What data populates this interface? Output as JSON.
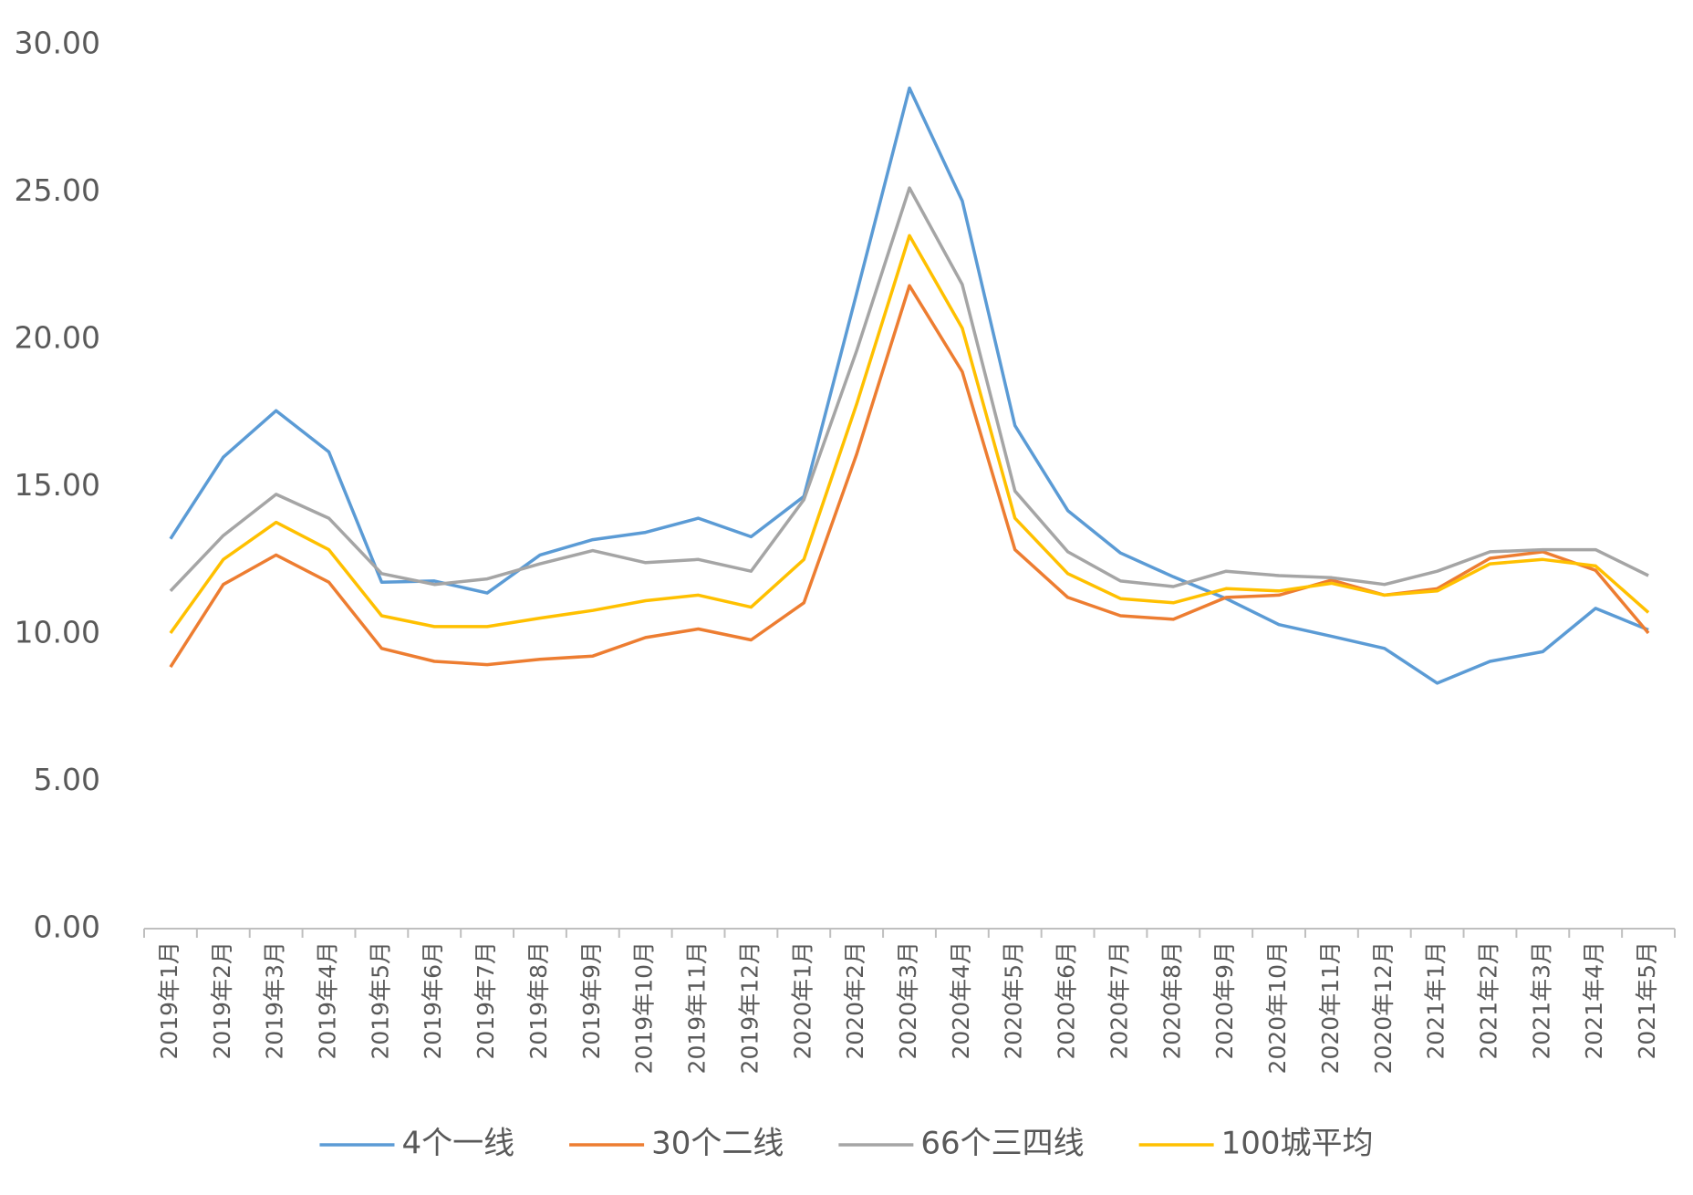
{
  "chart_data": {
    "type": "line",
    "categories": [
      "2019年1月",
      "2019年2月",
      "2019年3月",
      "2019年4月",
      "2019年5月",
      "2019年6月",
      "2019年7月",
      "2019年8月",
      "2019年9月",
      "2019年10月",
      "2019年11月",
      "2019年12月",
      "2020年1月",
      "2020年2月",
      "2020年3月",
      "2020年4月",
      "2020年5月",
      "2020年6月",
      "2020年7月",
      "2020年8月",
      "2020年9月",
      "2020年10月",
      "2020年11月",
      "2020年12月",
      "2021年1月",
      "2021年2月",
      "2021年3月",
      "2021年4月",
      "2021年5月"
    ],
    "series": [
      {
        "name": "4个一线",
        "color": "#5b9bd5",
        "values": [
          13.23,
          16.0,
          17.58,
          16.18,
          11.76,
          11.8,
          11.39,
          12.68,
          13.2,
          13.45,
          13.93,
          13.3,
          14.67,
          21.56,
          28.53,
          24.7,
          17.07,
          14.19,
          12.75,
          11.94,
          11.2,
          10.32,
          9.92,
          9.51,
          8.33,
          9.07,
          9.4,
          10.87,
          10.14
        ]
      },
      {
        "name": "30个二线",
        "color": "#ed7d31",
        "values": [
          8.88,
          11.68,
          12.68,
          11.76,
          9.51,
          9.07,
          8.96,
          9.14,
          9.25,
          9.88,
          10.17,
          9.8,
          11.06,
          16.1,
          21.82,
          18.9,
          12.86,
          11.24,
          10.62,
          10.5,
          11.24,
          11.32,
          11.83,
          11.32,
          11.54,
          12.57,
          12.79,
          12.16,
          10.03
        ]
      },
      {
        "name": "66个三四线",
        "color": "#a5a5a5",
        "values": [
          11.46,
          13.34,
          14.74,
          13.93,
          12.05,
          11.68,
          11.87,
          12.38,
          12.83,
          12.42,
          12.53,
          12.13,
          14.56,
          19.61,
          25.14,
          21.86,
          14.85,
          12.79,
          11.8,
          11.61,
          12.13,
          11.98,
          11.91,
          11.68,
          12.13,
          12.79,
          12.86,
          12.86,
          11.98
        ]
      },
      {
        "name": "100城平均",
        "color": "#ffc000",
        "values": [
          10.03,
          12.53,
          13.79,
          12.86,
          10.62,
          10.25,
          10.25,
          10.54,
          10.8,
          11.13,
          11.32,
          10.91,
          12.53,
          17.8,
          23.52,
          20.38,
          13.93,
          12.05,
          11.2,
          11.06,
          11.54,
          11.46,
          11.72,
          11.32,
          11.46,
          12.38,
          12.53,
          12.31,
          10.73
        ]
      }
    ],
    "ylim": [
      0,
      30
    ],
    "yticks": [
      {
        "value": 0,
        "label": "0.00"
      },
      {
        "value": 5,
        "label": "5.00"
      },
      {
        "value": 10,
        "label": "10.00"
      },
      {
        "value": 15,
        "label": "15.00"
      },
      {
        "value": 20,
        "label": "20.00"
      },
      {
        "value": 25,
        "label": "25.00"
      },
      {
        "value": 30,
        "label": "30.00"
      }
    ],
    "grid": false,
    "legend": "bottom"
  }
}
